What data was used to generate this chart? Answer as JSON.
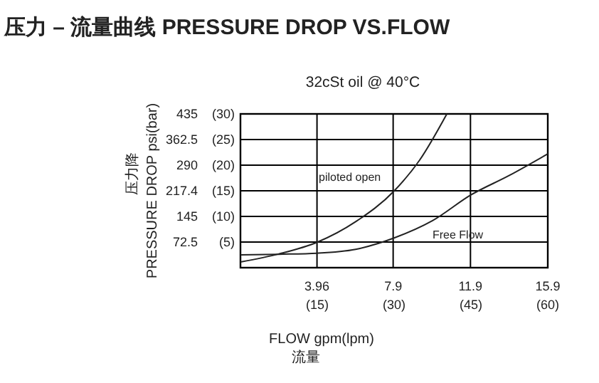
{
  "chart_data": {
    "type": "line",
    "title": "压力 – 流量曲线 PRESSURE DROP VS.FLOW",
    "subtitle": "32cSt oil @ 40°C",
    "xlabel": "FLOW gpm(lpm)\n流量",
    "ylabel": "PRESSURE  DROP psi(bar)\n压力降",
    "x": [
      0,
      1.99,
      3.97,
      5.96,
      7.95,
      9.28,
      10.68
    ],
    "series": [
      {
        "name": "piloted open",
        "color": "#222222",
        "values": [
          16,
          39,
          72,
          130,
          217,
          305,
          435
        ]
      },
      {
        "name": "Free Flow",
        "color": "#222222",
        "x": [
          0,
          1.99,
          3.97,
          5.96,
          7.95,
          9.94,
          11.93,
          13.91,
          15.9
        ],
        "values": [
          36,
          38,
          41,
          52,
          84,
          133,
          206,
          261,
          322
        ]
      }
    ],
    "xlim": [
      0,
      15.9
    ],
    "xticks": [
      3.96,
      7.9,
      11.9,
      15.9
    ],
    "x2lim": [
      0,
      60
    ],
    "x2ticks": [
      {
        "value": 15,
        "label": "(15)"
      },
      {
        "value": 30,
        "label": "(30)"
      },
      {
        "value": 45,
        "label": "(45)"
      },
      {
        "value": 60,
        "label": "(60)"
      }
    ],
    "ylim": [
      0,
      435
    ],
    "yticks": [
      72.5,
      145,
      217.4,
      290,
      362.5,
      435
    ],
    "y2lim": [
      0,
      30
    ],
    "y2ticks": [
      {
        "value": 5,
        "label": "(5)"
      },
      {
        "value": 10,
        "label": "(10)"
      },
      {
        "value": 15,
        "label": "(15)"
      },
      {
        "value": 20,
        "label": "(20)"
      },
      {
        "value": 25,
        "label": "(25)"
      },
      {
        "value": 30,
        "label": "(30)"
      }
    ],
    "grid": true,
    "legend": false,
    "marker": "none",
    "line_style": "solid"
  }
}
